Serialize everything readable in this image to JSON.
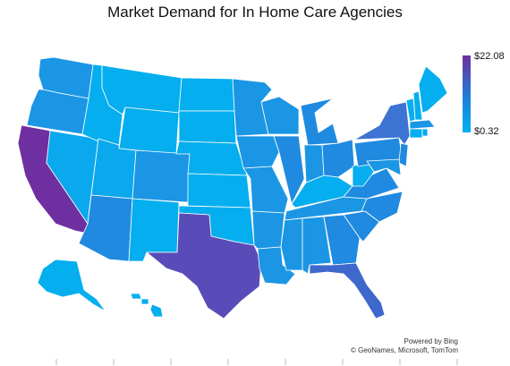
{
  "title": "Market Demand for In Home Care Agencies",
  "legend": {
    "max_label": "$22.08",
    "min_label": "$0.32",
    "color_high": "#6e2fa0",
    "color_mid": "#1e7fd8",
    "color_low": "#00b0f0"
  },
  "attribution": {
    "line1": "Powered by Bing",
    "line2": "© GeoNames, Microsoft, TomTom"
  },
  "colors": {
    "c_purple": "#6e2fa0",
    "c_tx": "#5a4cb8",
    "c_fl": "#3f68cc",
    "c_ny": "#3d73d2",
    "c_mid": "#1f8ae0",
    "c_mid2": "#1b96e4",
    "c_light": "#05aeee",
    "c_light2": "#0aa8ec"
  }
}
